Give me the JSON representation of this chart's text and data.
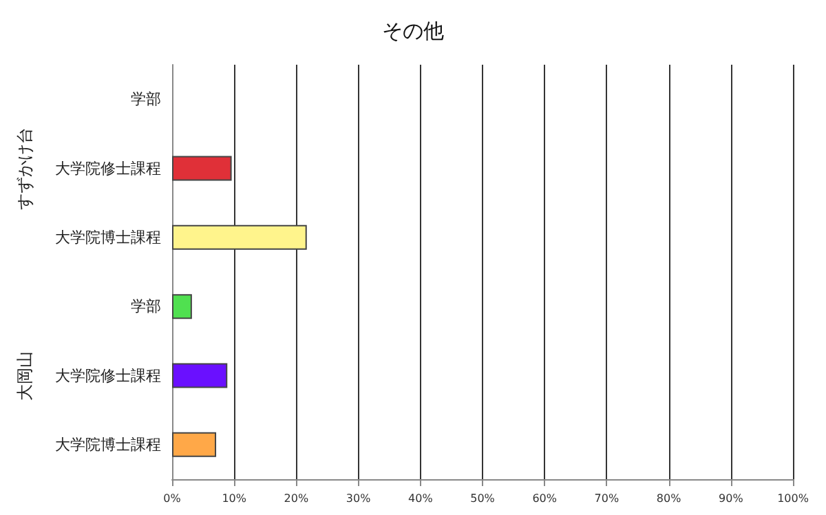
{
  "chart_data": {
    "type": "bar",
    "orientation": "horizontal",
    "title": "その他",
    "categories": [
      "学部",
      "大学院修士課程",
      "大学院博士課程",
      "学部",
      "大学院修士課程",
      "大学院博士課程"
    ],
    "values": [
      0,
      9.6,
      21.7,
      3.2,
      8.9,
      7.1
    ],
    "colors": [
      "#3050c0",
      "#e03038",
      "#fff48c",
      "#50e050",
      "#6a10ff",
      "#ffa848"
    ],
    "xlim": [
      0,
      100
    ],
    "xticks": [
      {
        "value": 0,
        "label": "0%"
      },
      {
        "value": 10,
        "label": "10%"
      },
      {
        "value": 20,
        "label": "20%"
      },
      {
        "value": 30,
        "label": "30%"
      },
      {
        "value": 40,
        "label": "40%"
      },
      {
        "value": 50,
        "label": "50%"
      },
      {
        "value": 60,
        "label": "60%"
      },
      {
        "value": 70,
        "label": "70%"
      },
      {
        "value": 80,
        "label": "80%"
      },
      {
        "value": 90,
        "label": "90%"
      },
      {
        "value": 100,
        "label": "100%"
      }
    ],
    "annotations": [
      "すずかけ台",
      "大岡山"
    ],
    "grid": "x"
  }
}
